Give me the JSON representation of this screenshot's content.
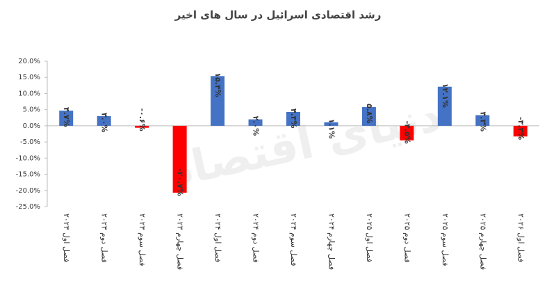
{
  "chart_data": {
    "type": "bar",
    "title": "رشد اقتصادی اسرائیل در سال های اخیر",
    "watermark": "دنیای اقتصاد",
    "categories": [
      "فصل اول ۲۰۲۳",
      "فصل دوم ۲۰۲۳",
      "فصل سوم ۲۰۲۳",
      "فصل چهارم ۲۰۲۳",
      "فصل اول ۲۰۲۴",
      "فصل دوم ۲۰۲۴",
      "فصل سوم ۲۰۲۴",
      "فصل چهارم ۲۰۲۴",
      "فصل اول ۲۰۲۵",
      "فصل دوم ۲۰۲۵",
      "فصل سوم ۲۰۲۵",
      "فصل چهارم ۲۰۲۵",
      "فصل اول ۲۰۲۶"
    ],
    "values": [
      4.7,
      3.0,
      -0.6,
      -20.7,
      15.4,
      2.0,
      4.3,
      1.1,
      5.8,
      -4.5,
      12.1,
      3.3,
      -3.3
    ],
    "value_labels": [
      "۴.۷%",
      "۳.۰%",
      "-۰.۶%",
      "-۲۰.۷%",
      "۱۵.۴%",
      "۲.۰%",
      "۴.۳%",
      "۱.۱%",
      "۵.۸%",
      "-۴.۵%",
      "۱۲.۱%",
      "۳.۳%",
      "-۳.۳%"
    ],
    "color_positive": "#4472c4",
    "color_negative": "#ff0000",
    "ylim": [
      -25,
      20
    ],
    "yticks": [
      {
        "value": 20,
        "label": "20.0%"
      },
      {
        "value": 15,
        "label": "15.0%"
      },
      {
        "value": 10,
        "label": "10.0%"
      },
      {
        "value": 5,
        "label": "5.0%"
      },
      {
        "value": 0,
        "label": "0.0%"
      },
      {
        "value": -5,
        "label": "-5.0%"
      },
      {
        "value": -10,
        "label": "-10.0%"
      },
      {
        "value": -15,
        "label": "-15.0%"
      },
      {
        "value": -20,
        "label": "-20.0%"
      },
      {
        "value": -25,
        "label": "-25.0%"
      }
    ],
    "grid": false
  }
}
